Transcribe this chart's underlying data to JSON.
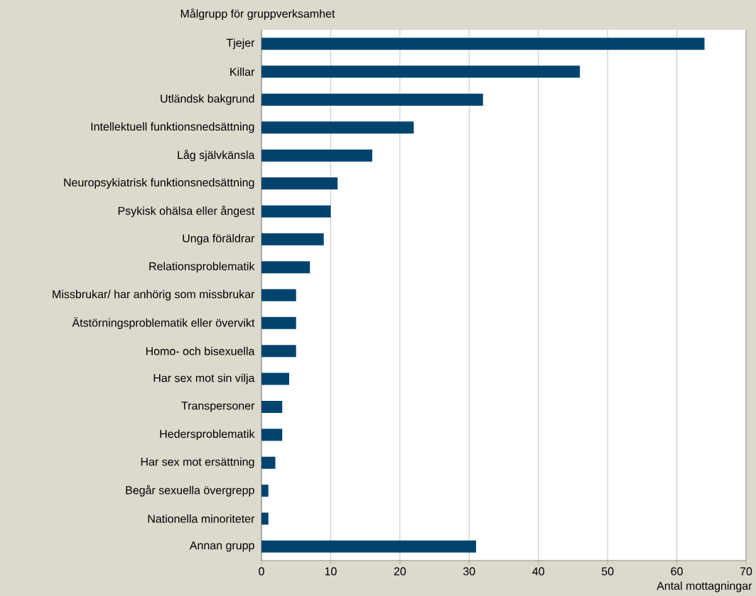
{
  "chart_data": {
    "type": "bar",
    "orientation": "horizontal",
    "title": "Målgrupp för gruppverksamhet",
    "xlabel": "Antal mottagningar",
    "categories": [
      "Tjejer",
      "Killar",
      "Utländsk bakgrund",
      "Intellektuell funktionsnedsättning",
      "Låg självkänsla",
      "Neuropsykiatrisk funktionsnedsättning",
      "Psykisk ohälsa eller ångest",
      "Unga föräldrar",
      "Relationsproblematik",
      "Missbrukar/ har anhörig som missbrukar",
      "Ätstörningsproblematik eller övervikt",
      "Homo- och bisexuella",
      "Har sex mot sin vilja",
      "Transpersoner",
      "Hedersproblematik",
      "Har sex mot ersättning",
      "Begår sexuella övergrepp",
      "Nationella minoriteter",
      "Annan grupp"
    ],
    "values": [
      64,
      46,
      32,
      22,
      16,
      11,
      10,
      9,
      7,
      5,
      5,
      5,
      4,
      3,
      3,
      2,
      1,
      1,
      31
    ],
    "color": "#00446e",
    "xlim": [
      0,
      70
    ],
    "xticks": [
      0,
      10,
      20,
      30,
      40,
      50,
      60,
      70
    ],
    "grid": "x"
  }
}
